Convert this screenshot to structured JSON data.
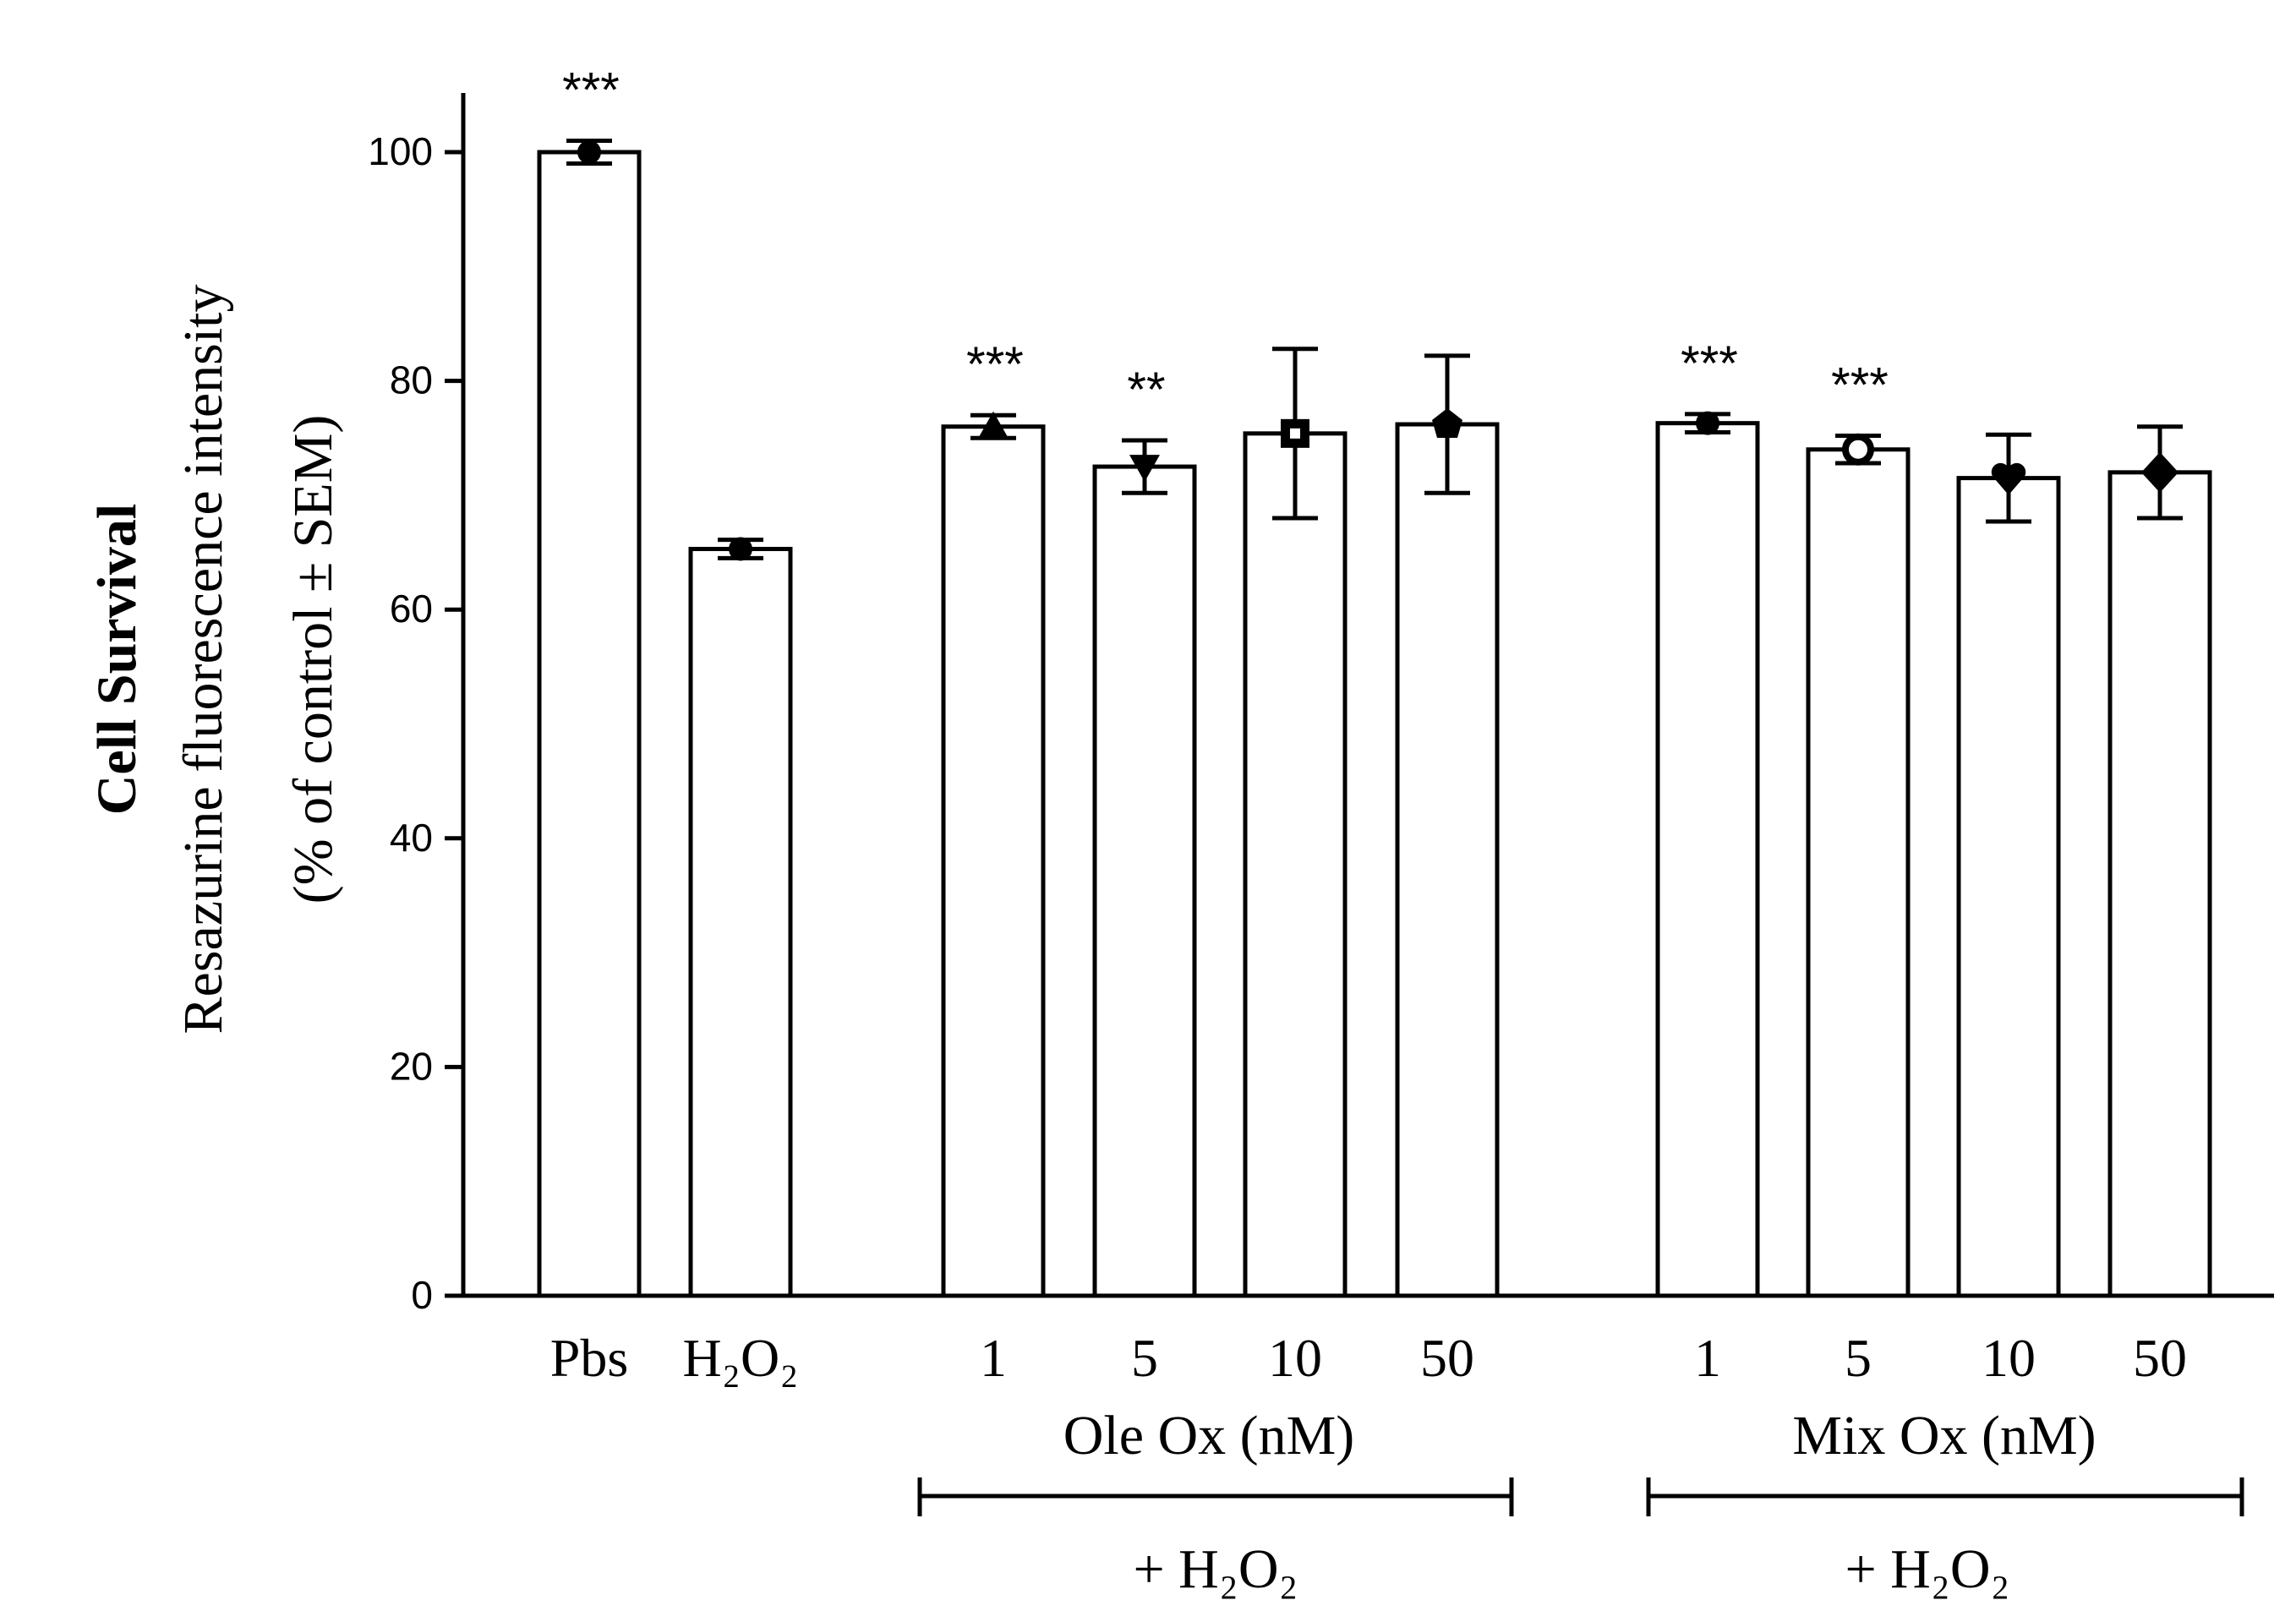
{
  "chart_data": {
    "type": "bar",
    "title": "",
    "ylabel_title": "Cell Survival",
    "ylabel_line1": "Resazurine fluorescence intensity",
    "ylabel_line2": "(% of control ± SEM)",
    "ylim": [
      0,
      105
    ],
    "yticks": [
      0,
      20,
      40,
      60,
      80,
      100
    ],
    "bars": [
      {
        "label": "Pbs",
        "value": 100,
        "error": 1.0,
        "marker": "circle",
        "significance": "***"
      },
      {
        "label": "H₂O₂",
        "value": 65.3,
        "error": 0.8,
        "marker": "circle",
        "significance": ""
      },
      {
        "label": "1",
        "value": 76.0,
        "error": 1.0,
        "marker": "triangle-up",
        "significance": "***"
      },
      {
        "label": "5",
        "value": 72.5,
        "error": 2.3,
        "marker": "triangle-down",
        "significance": "**"
      },
      {
        "label": "10",
        "value": 75.4,
        "error": 7.4,
        "marker": "square",
        "significance": ""
      },
      {
        "label": "50",
        "value": 76.2,
        "error": 6.0,
        "marker": "pentagon",
        "significance": ""
      },
      {
        "label": "1",
        "value": 76.3,
        "error": 0.8,
        "marker": "circle",
        "significance": "***"
      },
      {
        "label": "5",
        "value": 74.0,
        "error": 1.2,
        "marker": "circle-open",
        "significance": "***"
      },
      {
        "label": "10",
        "value": 71.5,
        "error": 3.8,
        "marker": "heart",
        "significance": ""
      },
      {
        "label": "50",
        "value": 72.0,
        "error": 4.0,
        "marker": "diamond",
        "significance": ""
      }
    ],
    "groups": [
      {
        "name": "Ole Ox (nM)",
        "treatment": "+ H₂O₂"
      },
      {
        "name": "Mix Ox (nM)",
        "treatment": "+ H₂O₂"
      }
    ]
  }
}
